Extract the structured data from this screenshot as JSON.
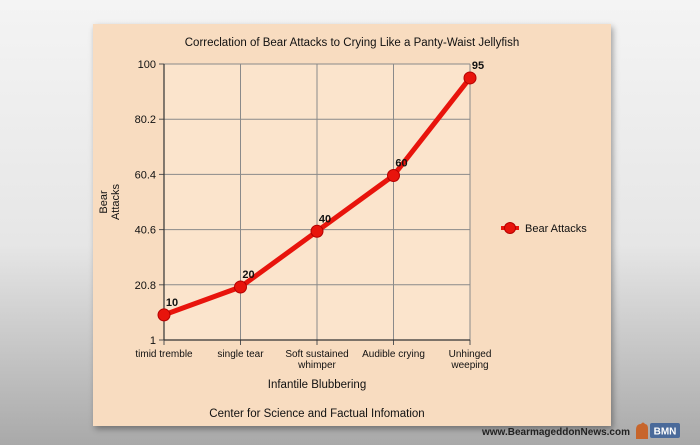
{
  "chart_data": {
    "type": "line",
    "title": "Correclation of Bear Attacks to Crying Like a Panty-Waist Jellyfish",
    "xlabel": "Infantile Blubbering",
    "ylabel_lines": [
      "Bear",
      "Attacks"
    ],
    "footer": "Center for Science and Factual Infomation",
    "categories": [
      [
        "timid tremble"
      ],
      [
        "single tear"
      ],
      [
        "Soft sustained",
        "whimper"
      ],
      [
        "Audible crying"
      ],
      [
        "Unhinged",
        "weeping"
      ]
    ],
    "series": [
      {
        "name": "Bear Attacks",
        "values": [
          10,
          20,
          40,
          60,
          95
        ],
        "color": "#e8140c"
      }
    ],
    "ylim": [
      1,
      100
    ],
    "yticks": [
      "1",
      "20.8",
      "40.6",
      "60.4",
      "80.2",
      "100"
    ],
    "grid": true,
    "legend_position": "right"
  },
  "site": {
    "url": "www.BearmageddonNews.com",
    "logo_text": "BMN"
  }
}
